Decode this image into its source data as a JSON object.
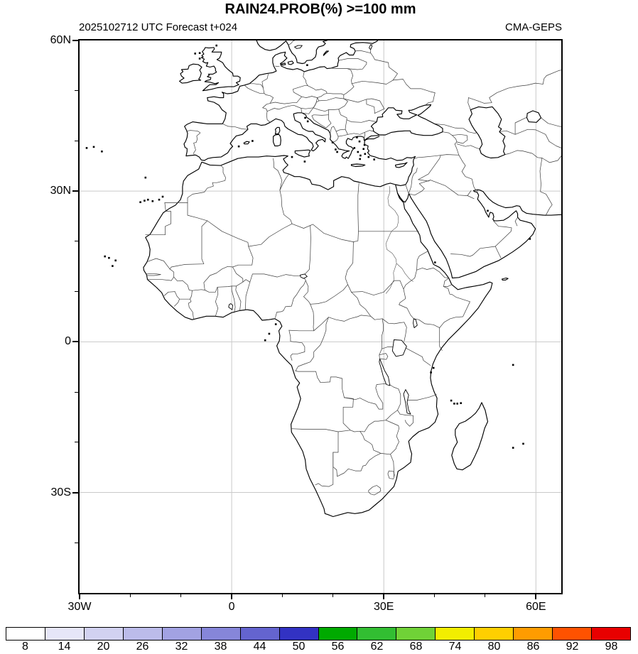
{
  "header": {
    "title": "RAIN24.PROB(%) >=100 mm",
    "subtitle_left": "2025102712 UTC Forecast t+024",
    "subtitle_right": "CMA-GEPS"
  },
  "map": {
    "lon_range": [
      -30,
      65
    ],
    "lat_range": [
      -50,
      60
    ],
    "lat_labels": [
      {
        "text": "60N",
        "lat": 60
      },
      {
        "text": "30N",
        "lat": 30
      },
      {
        "text": "0",
        "lat": 0
      },
      {
        "text": "30S",
        "lat": -30
      }
    ],
    "lon_labels": [
      {
        "text": "30W",
        "lon": -30
      },
      {
        "text": "0",
        "lon": 0
      },
      {
        "text": "30E",
        "lon": 30
      },
      {
        "text": "60E",
        "lon": 60
      }
    ],
    "gridline_lons": [
      0,
      30,
      60
    ],
    "gridline_lats": [
      30,
      0,
      -30
    ],
    "minor_tick_step_deg": 10,
    "shaded_probability_areas": []
  },
  "colorbar": {
    "tick_labels": [
      "8",
      "14",
      "20",
      "26",
      "32",
      "38",
      "44",
      "50",
      "56",
      "62",
      "68",
      "74",
      "80",
      "86",
      "92",
      "98"
    ],
    "segment_colors": [
      "#ffffff",
      "#e6e6f8",
      "#d2d2f1",
      "#bcbcea",
      "#a2a2e2",
      "#8686d9",
      "#6464cf",
      "#3232c3",
      "#00aa00",
      "#32be32",
      "#70d237",
      "#f2ee00",
      "#ffcf00",
      "#ff9c00",
      "#ff5200",
      "#e80000"
    ],
    "outline_color": "#000000"
  }
}
